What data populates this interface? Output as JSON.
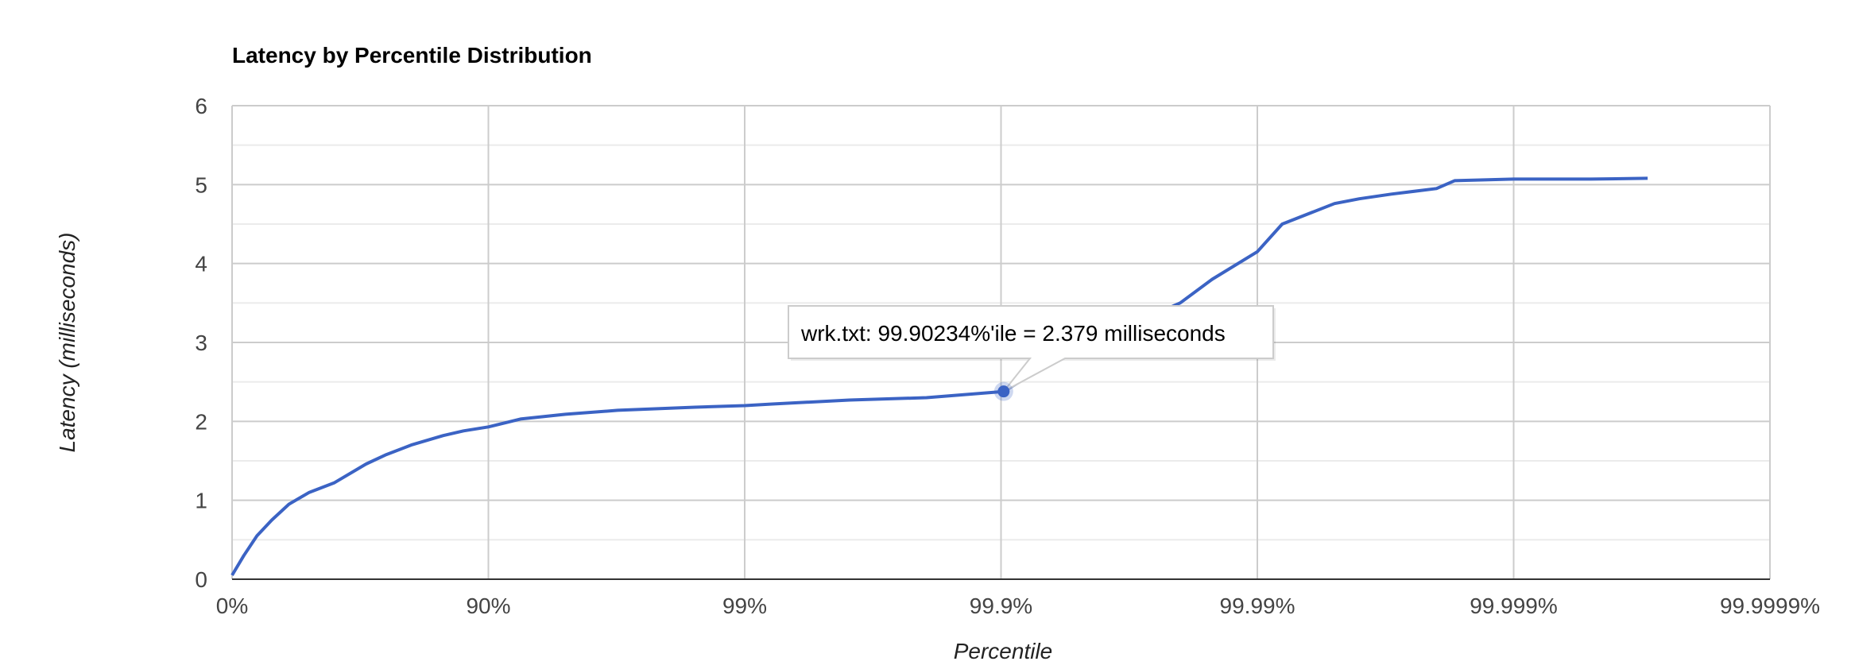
{
  "chart_data": {
    "type": "line",
    "title": "Latency by Percentile Distribution",
    "xlabel": "Percentile",
    "ylabel": "Latency (milliseconds)",
    "x_scale": "log inverse percentile (1/(1-p))",
    "x_tick_labels": [
      "0%",
      "90%",
      "99%",
      "99.9%",
      "99.99%",
      "99.999%",
      "99.9999%"
    ],
    "y_tick_labels": [
      "0",
      "1",
      "2",
      "3",
      "4",
      "5",
      "6"
    ],
    "ylim": [
      0,
      6
    ],
    "grid": true,
    "series": [
      {
        "name": "wrk.txt",
        "color": "#3b63c4",
        "x": [
          0,
          10,
          20,
          30,
          40,
          50,
          60,
          70,
          75,
          80,
          85,
          87.5,
          90,
          92.5,
          95,
          96.875,
          98.4375,
          99,
          99.21875,
          99.609375,
          99.8046875,
          99.90234,
          99.92,
          99.95,
          99.97,
          99.98,
          99.985,
          99.99,
          99.992,
          99.995,
          99.996,
          99.997,
          99.998,
          99.9983,
          99.9987,
          99.999,
          99.9992,
          99.9995,
          99.9997
        ],
        "y": [
          0.05,
          0.3,
          0.55,
          0.75,
          0.95,
          1.1,
          1.22,
          1.46,
          1.58,
          1.7,
          1.82,
          1.88,
          1.93,
          2.03,
          2.09,
          2.14,
          2.18,
          2.2,
          2.22,
          2.27,
          2.3,
          2.379,
          2.55,
          2.9,
          3.25,
          3.5,
          3.8,
          4.15,
          4.5,
          4.76,
          4.82,
          4.88,
          4.95,
          5.05,
          5.06,
          5.07,
          5.07,
          5.07,
          5.08
        ]
      }
    ],
    "tooltip": {
      "series": "wrk.txt",
      "x": 99.90234,
      "y": 2.379,
      "text": "wrk.txt: 99.90234%'ile = 2.379 milliseconds"
    },
    "colors": {
      "line": "#3b63c4",
      "grid": "#cccccc",
      "minor_grid": "#ebebeb",
      "baseline": "#333333"
    }
  }
}
